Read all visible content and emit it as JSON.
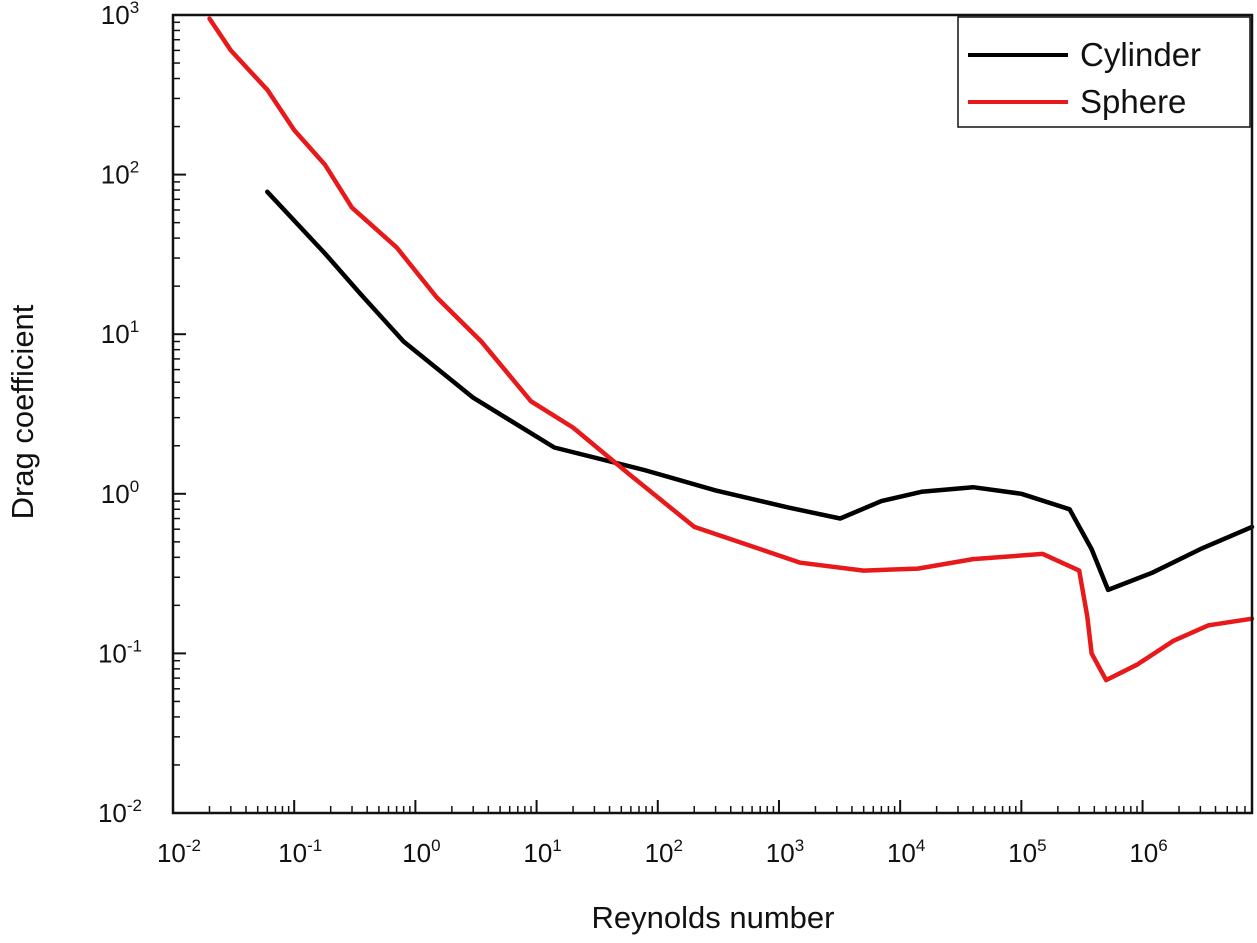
{
  "chart_data": {
    "type": "line",
    "title": "",
    "xlabel": "Reynolds number",
    "ylabel": "Drag coefficient",
    "xscale": "log",
    "yscale": "log",
    "xlim": [
      0.01,
      8000000
    ],
    "ylim": [
      0.01,
      1000
    ],
    "grid": false,
    "legend_position": "top-right",
    "x_tick_labels": [
      {
        "base": "10",
        "exp": "-2"
      },
      {
        "base": "10",
        "exp": "-1"
      },
      {
        "base": "10",
        "exp": "0"
      },
      {
        "base": "10",
        "exp": "1"
      },
      {
        "base": "10",
        "exp": "2"
      },
      {
        "base": "10",
        "exp": "3"
      },
      {
        "base": "10",
        "exp": "4"
      },
      {
        "base": "10",
        "exp": "5"
      },
      {
        "base": "10",
        "exp": "6"
      }
    ],
    "y_tick_labels": [
      {
        "base": "10",
        "exp": "-2"
      },
      {
        "base": "10",
        "exp": "-1"
      },
      {
        "base": "10",
        "exp": "0"
      },
      {
        "base": "10",
        "exp": "1"
      },
      {
        "base": "10",
        "exp": "2"
      },
      {
        "base": "10",
        "exp": "3"
      }
    ],
    "series": [
      {
        "name": "Cylinder",
        "color": "#000000",
        "x": [
          0.06,
          0.18,
          0.35,
          0.8,
          3,
          14,
          80,
          300,
          1200,
          3200,
          7000,
          15000,
          40000,
          100000,
          250000,
          380000,
          520000,
          1200000,
          3000000,
          8000000
        ],
        "y": [
          78,
          32,
          18,
          9,
          4,
          1.95,
          1.4,
          1.05,
          0.82,
          0.7,
          0.9,
          1.03,
          1.1,
          1.0,
          0.8,
          0.45,
          0.25,
          0.32,
          0.45,
          0.62
        ]
      },
      {
        "name": "Sphere",
        "color": "#e8191b",
        "x": [
          0.02,
          0.03,
          0.06,
          0.1,
          0.18,
          0.3,
          0.7,
          1.5,
          3.5,
          9,
          20,
          60,
          200,
          700,
          1500,
          5000,
          14000,
          40000,
          150000,
          300000,
          350000,
          380000,
          500000,
          900000,
          1800000,
          3500000,
          8000000
        ],
        "y": [
          950,
          600,
          340,
          190,
          115,
          62,
          35,
          17,
          9,
          3.8,
          2.6,
          1.3,
          0.62,
          0.45,
          0.37,
          0.33,
          0.34,
          0.39,
          0.42,
          0.33,
          0.17,
          0.1,
          0.068,
          0.085,
          0.12,
          0.15,
          0.165
        ]
      }
    ]
  }
}
